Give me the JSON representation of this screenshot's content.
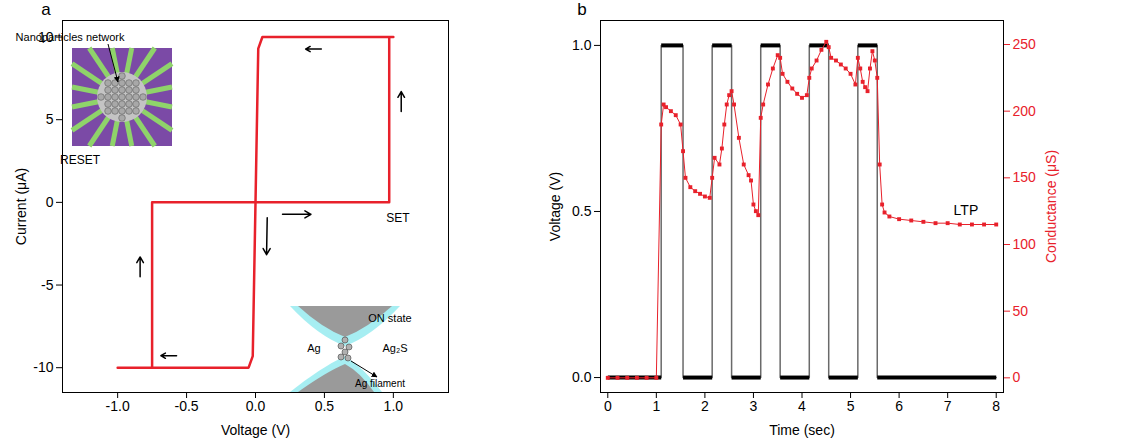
{
  "chart_data": [
    {
      "panel": "a",
      "type": "line",
      "x_label": "Voltage (V)",
      "y_label": "Current (μA)",
      "xlim": [
        -1.4,
        1.4
      ],
      "xticks": [
        {
          "value": -1,
          "label": "-1.0"
        },
        {
          "value": -0.5,
          "label": "-0.5"
        },
        {
          "value": 0,
          "label": "0.0"
        },
        {
          "value": 0.5,
          "label": "0.5"
        },
        {
          "value": 1,
          "label": "1.0"
        }
      ],
      "ylim": [
        -11.5,
        11
      ],
      "yticks": [
        -10,
        -5,
        0,
        5,
        10
      ],
      "color": "#e8212b",
      "x": [
        -0.75,
        0.97,
        0.97,
        1.0,
        0.05,
        0.02,
        -0.02,
        -0.05,
        -1.0,
        -0.75,
        -0.75
      ],
      "values": [
        0,
        0,
        10,
        10,
        10,
        9.3,
        -9.3,
        -10,
        -10,
        -10,
        0
      ],
      "annotations": [
        "SET",
        "RESET"
      ],
      "inset_labels": [
        "Nanoparticles network",
        "ON state",
        "Ag₂S",
        "Ag",
        "Ag filament"
      ]
    },
    {
      "panel": "b",
      "type": "line",
      "x_label": "Time (sec)",
      "y_label": "Voltage (V)",
      "y2_label": "Conductance (μS)",
      "xlim": [
        -0.15,
        8.15
      ],
      "xticks": [
        0,
        1,
        2,
        3,
        4,
        5,
        6,
        7,
        8
      ],
      "ylim": [
        -0.045,
        1.075
      ],
      "yticks": [
        {
          "value": 0,
          "label": "0.0"
        },
        {
          "value": 0.5,
          "label": "0.5"
        },
        {
          "value": 1,
          "label": "1.0"
        }
      ],
      "y2lim": [
        -11,
        268
      ],
      "y2ticks": [
        0,
        50,
        100,
        150,
        200,
        250
      ],
      "series": [
        {
          "color": "#000000",
          "x": [
            0,
            1.1,
            1.1,
            1.55,
            1.55,
            2.15,
            2.15,
            2.55,
            2.55,
            3.15,
            3.15,
            3.55,
            3.55,
            4.15,
            4.15,
            4.55,
            4.55,
            5.15,
            5.15,
            5.55,
            5.55,
            8
          ],
          "values": [
            0,
            0,
            1,
            1,
            0,
            0,
            1,
            1,
            0,
            0,
            1,
            1,
            0,
            0,
            1,
            1,
            0,
            0,
            1,
            1,
            0,
            0
          ]
        },
        {
          "axis": "y2",
          "color": "#e8212b",
          "marker": "square",
          "x": [
            0,
            0.2,
            0.4,
            0.6,
            0.8,
            1.0,
            1.1,
            1.15,
            1.2,
            1.3,
            1.4,
            1.5,
            1.55,
            1.6,
            1.7,
            1.8,
            1.9,
            2.0,
            2.1,
            2.15,
            2.2,
            2.3,
            2.35,
            2.4,
            2.45,
            2.5,
            2.55,
            2.6,
            2.7,
            2.8,
            2.9,
            2.95,
            3.0,
            3.05,
            3.1,
            3.15,
            3.2,
            3.3,
            3.4,
            3.5,
            3.55,
            3.6,
            3.7,
            3.8,
            3.9,
            4.0,
            4.1,
            4.15,
            4.2,
            4.3,
            4.4,
            4.5,
            4.55,
            4.6,
            4.7,
            4.8,
            4.9,
            5.0,
            5.1,
            5.15,
            5.2,
            5.25,
            5.3,
            5.35,
            5.4,
            5.45,
            5.5,
            5.55,
            5.6,
            5.65,
            5.7,
            5.8,
            6.0,
            6.25,
            6.5,
            6.75,
            7.0,
            7.25,
            7.5,
            7.75,
            8.0
          ],
          "values": [
            0,
            0,
            0,
            0,
            0,
            0,
            190,
            205,
            203,
            200,
            197,
            190,
            170,
            150,
            143,
            140,
            138,
            136,
            135,
            150,
            165,
            160,
            172,
            190,
            205,
            212,
            215,
            205,
            180,
            160,
            152,
            148,
            130,
            125,
            122,
            195,
            205,
            220,
            232,
            242,
            240,
            228,
            222,
            217,
            213,
            210,
            212,
            225,
            232,
            238,
            246,
            252,
            248,
            240,
            238,
            235,
            232,
            228,
            220,
            240,
            232,
            222,
            218,
            215,
            232,
            245,
            238,
            225,
            160,
            130,
            124,
            121,
            119,
            118,
            117,
            116,
            116,
            115,
            115,
            115,
            115
          ]
        }
      ],
      "annotations": [
        "LTP"
      ]
    }
  ]
}
